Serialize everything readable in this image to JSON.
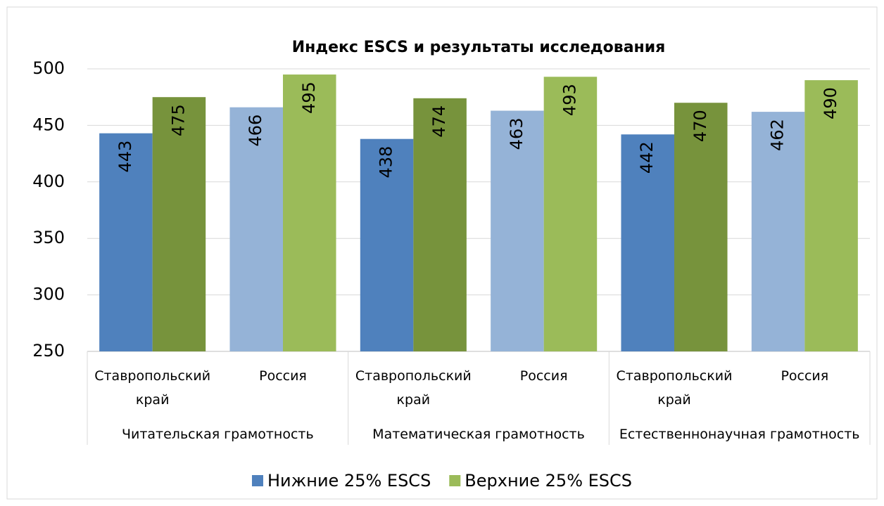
{
  "chart_data": {
    "type": "bar",
    "title": "Индекс ESCS и результаты исследования",
    "categories": [
      "Ставропольский край",
      "Россия",
      "Ставропольский край",
      "Россия",
      "Ставропольский край",
      "Россия"
    ],
    "groups": [
      "Читательская грамотность",
      "Математическая грамотность",
      "Естественнонаучная грамотность"
    ],
    "series": [
      {
        "name": "Нижние 25% ESCS",
        "color": "#4f81bd",
        "colors": [
          "#4f81bd",
          "#95b3d7",
          "#4f81bd",
          "#95b3d7",
          "#4f81bd",
          "#95b3d7"
        ],
        "values": [
          443,
          466,
          438,
          463,
          442,
          462
        ]
      },
      {
        "name": "Верхние 25% ESCS",
        "color": "#9bbb59",
        "colors": [
          "#77933c",
          "#9bbb59",
          "#77933c",
          "#9bbb59",
          "#77933c",
          "#9bbb59"
        ],
        "values": [
          475,
          495,
          474,
          493,
          470,
          490
        ]
      }
    ],
    "ylim": [
      250,
      500
    ],
    "yticks": [
      250,
      300,
      350,
      400,
      450,
      500
    ],
    "grid": true,
    "legend": "bottom"
  }
}
